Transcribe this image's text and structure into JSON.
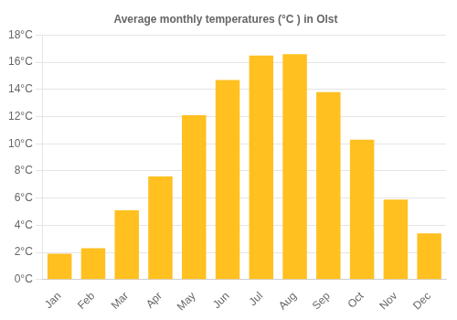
{
  "chart_data": {
    "type": "bar",
    "title": "Average monthly temperatures (°C ) in Olst",
    "categories": [
      "Jan",
      "Feb",
      "Mar",
      "Apr",
      "May",
      "Jun",
      "Jul",
      "Aug",
      "Sep",
      "Oct",
      "Nov",
      "Dec"
    ],
    "values": [
      1.9,
      2.3,
      5.1,
      7.6,
      12.1,
      14.7,
      16.5,
      16.6,
      13.8,
      10.3,
      5.9,
      3.4
    ],
    "color": "#FFC020",
    "ylim": [
      0,
      18
    ],
    "yticks": [
      {
        "value": 0,
        "label": "0°C"
      },
      {
        "value": 2,
        "label": "2°C"
      },
      {
        "value": 4,
        "label": "4°C"
      },
      {
        "value": 6,
        "label": "6°C"
      },
      {
        "value": 8,
        "label": "8°C"
      },
      {
        "value": 10,
        "label": "10°C"
      },
      {
        "value": 12,
        "label": "12°C"
      },
      {
        "value": 14,
        "label": "14°C"
      },
      {
        "value": 16,
        "label": "16°C"
      },
      {
        "value": 18,
        "label": "18°C"
      }
    ],
    "grid": true
  }
}
